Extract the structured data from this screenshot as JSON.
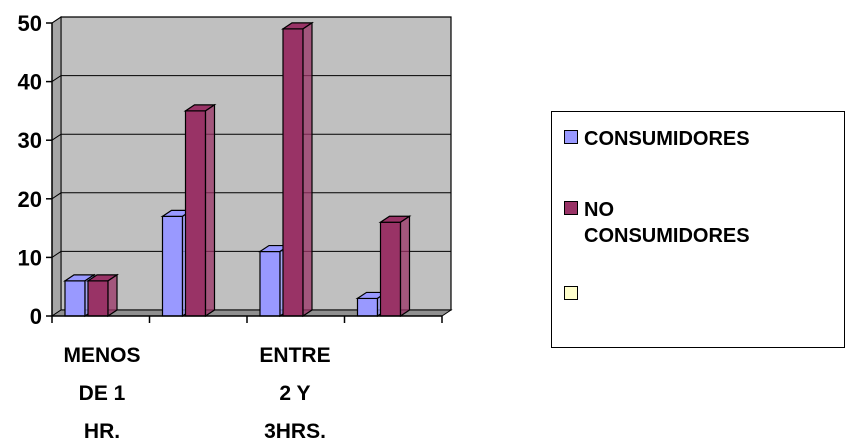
{
  "chart_data": {
    "type": "bar",
    "categories": [
      "MENOS\nDE 1\nHR.",
      "ENTRE\n2 Y\n3HRS.",
      "",
      ""
    ],
    "series": [
      {
        "name": "CONSUMIDORES",
        "values": [
          6,
          17,
          11,
          3
        ],
        "color": "#9999ff"
      },
      {
        "name": "NO\nCONSUMIDORES",
        "values": [
          6,
          35,
          49,
          16
        ],
        "color": "#993366"
      },
      {
        "name": "",
        "values": [
          0,
          0,
          0,
          0
        ],
        "color": "#ffffcc"
      }
    ],
    "ylim": [
      0,
      50
    ],
    "yticks": [
      0,
      10,
      20,
      30,
      40,
      50
    ],
    "ytick_labels": [
      "0",
      "10",
      "20",
      "30",
      "40",
      "50"
    ],
    "grid": true,
    "plot_background": "#c0c0c0",
    "legend_position": "right",
    "three_d": true
  }
}
